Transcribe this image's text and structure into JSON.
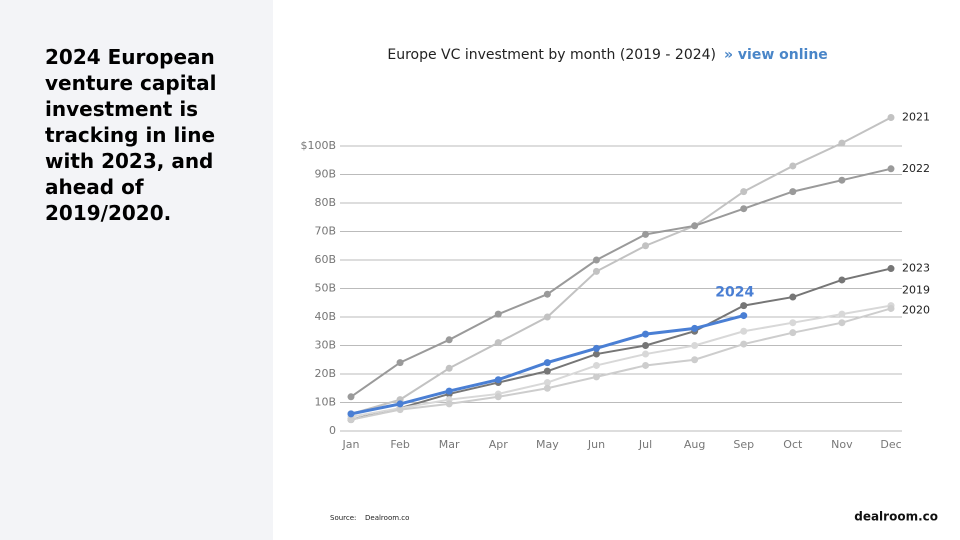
{
  "headline": "2024 European venture capital investment is tracking in line with 2023, and ahead of 2019/2020.",
  "source_label": "Source:",
  "source": "Dealroom.co",
  "brand": "dealroom.co",
  "chart_data": {
    "type": "line",
    "title": "Europe VC investment by month (2019 - 2024)",
    "link": "» view online",
    "categories": [
      "Jan",
      "Feb",
      "Mar",
      "Apr",
      "May",
      "Jun",
      "Jul",
      "Aug",
      "Sep",
      "Oct",
      "Nov",
      "Dec"
    ],
    "ylim": [
      0,
      100
    ],
    "yticks": [
      0,
      {
        "value": 10,
        "label": "10B"
      },
      {
        "value": 20,
        "label": "20B"
      },
      {
        "value": 30,
        "label": "30B"
      },
      {
        "value": 40,
        "label": "40B"
      },
      {
        "value": 50,
        "label": "50B"
      },
      {
        "value": 60,
        "label": "60B"
      },
      {
        "value": 70,
        "label": "70B"
      },
      {
        "value": 80,
        "label": "80B"
      },
      {
        "value": 90,
        "label": "90B"
      },
      {
        "value": 100,
        "label": "$100B"
      }
    ],
    "grid": true,
    "series": [
      {
        "name": "2021",
        "color": "#c2c2c2",
        "values": [
          6,
          11,
          22,
          31,
          40,
          56,
          65,
          72,
          84,
          93,
          101,
          110
        ]
      },
      {
        "name": "2022",
        "color": "#9a9a9a",
        "values": [
          12,
          24,
          32,
          41,
          48,
          60,
          69,
          72,
          78,
          84,
          88,
          92
        ]
      },
      {
        "name": "2023",
        "color": "#767676",
        "values": [
          4,
          8,
          13,
          17,
          21,
          27,
          30,
          35,
          44,
          47,
          53,
          57
        ]
      },
      {
        "name": "2019",
        "color": "#d8d8d8",
        "values": [
          5,
          8,
          11,
          13,
          17,
          23,
          27,
          30,
          35,
          38,
          41,
          44
        ]
      },
      {
        "name": "2020",
        "color": "#cdcdcd",
        "values": [
          4,
          7.5,
          9.5,
          12,
          15,
          19,
          23,
          25,
          30.5,
          34.5,
          38,
          43
        ]
      },
      {
        "name": "2024",
        "color": "#4a7fd4",
        "values": [
          6,
          9.5,
          14,
          18,
          24,
          29,
          34,
          36,
          40.5,
          null,
          null,
          null
        ]
      }
    ]
  }
}
